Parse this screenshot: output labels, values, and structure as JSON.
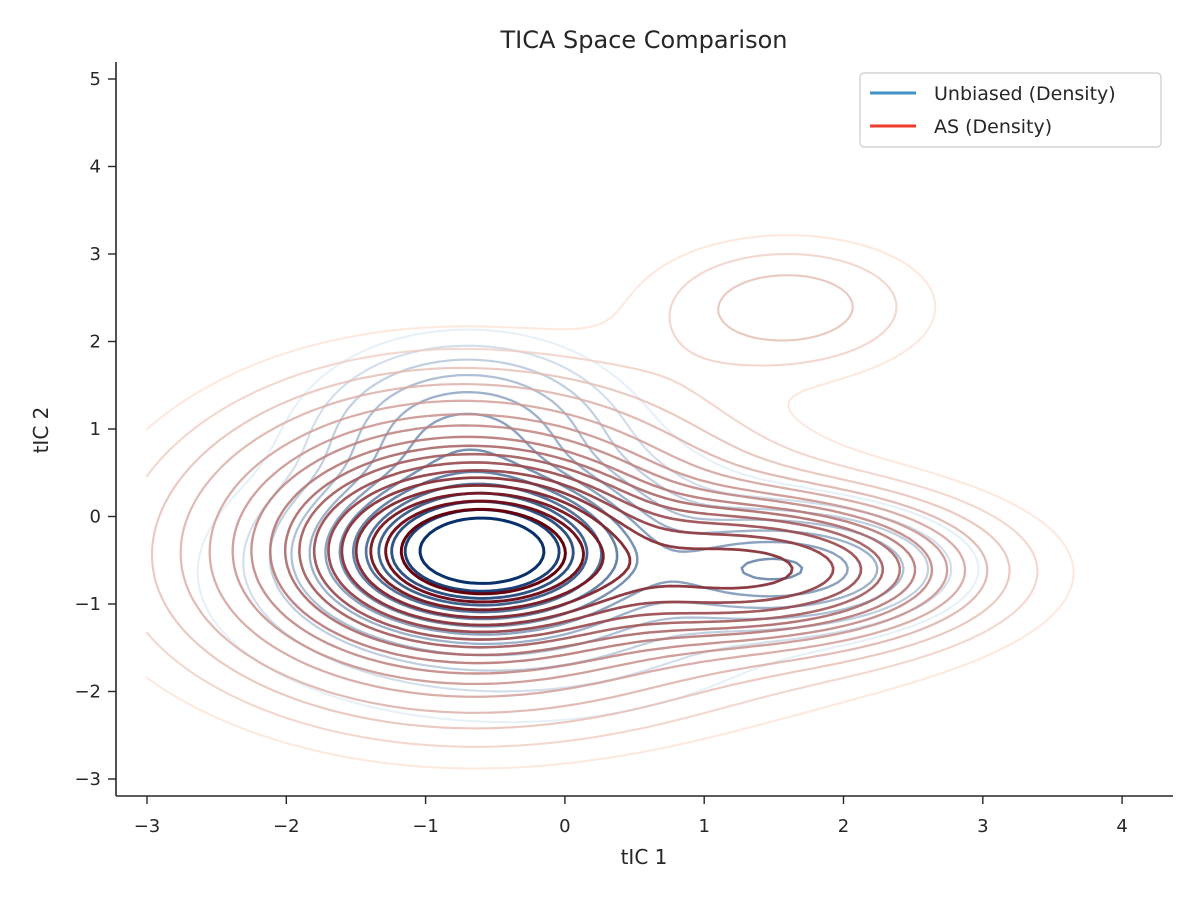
{
  "chart_data": {
    "type": "contour",
    "title": "TICA Space Comparison",
    "xlabel": "tIC 1",
    "ylabel": "tIC 2",
    "xlim": [
      -3.2,
      4.4
    ],
    "ylim": [
      -3.2,
      5.2
    ],
    "x_ticks": [
      -3,
      -2,
      -1,
      0,
      1,
      2,
      3,
      4
    ],
    "y_ticks": [
      -3,
      -2,
      -1,
      0,
      1,
      2,
      3,
      4,
      5
    ],
    "x_tick_labels": [
      "−3",
      "−2",
      "−1",
      "0",
      "1",
      "2",
      "3",
      "4"
    ],
    "y_tick_labels": [
      "−3",
      "−2",
      "−1",
      "0",
      "1",
      "2",
      "3",
      "4",
      "5"
    ],
    "grid": false,
    "legend_position": "top-right",
    "series": [
      {
        "name": "Unbiased (Density)",
        "legend_color": "#4292c6",
        "color_light": "#deebf7",
        "color_dark": "#08306b",
        "components": [
          {
            "cx": -0.6,
            "cy": -0.4,
            "sx": 0.55,
            "sy": 0.45,
            "weight": 1.0
          },
          {
            "cx": -0.7,
            "cy": 0.9,
            "sx": 0.55,
            "sy": 0.55,
            "weight": 0.18
          },
          {
            "cx": 1.55,
            "cy": -0.6,
            "sx": 0.6,
            "sy": 0.35,
            "weight": 0.22
          },
          {
            "cx": -0.4,
            "cy": -0.7,
            "sx": 1.2,
            "sy": 0.9,
            "weight": 0.08
          }
        ],
        "levels": [
          0.015,
          0.03,
          0.05,
          0.08,
          0.12,
          0.17,
          0.23,
          0.3,
          0.38,
          0.47,
          0.57,
          0.68,
          0.8
        ]
      },
      {
        "name": "AS (Density)",
        "legend_color": "#ef3b2c",
        "color_light": "#fee0d2",
        "color_dark": "#67000d",
        "components": [
          {
            "cx": -0.6,
            "cy": -0.4,
            "sx": 0.5,
            "sy": 0.42,
            "weight": 1.0
          },
          {
            "cx": -0.75,
            "cy": -0.3,
            "sx": 1.05,
            "sy": 1.0,
            "weight": 0.25
          },
          {
            "cx": 1.4,
            "cy": -0.6,
            "sx": 0.8,
            "sy": 0.45,
            "weight": 0.3
          },
          {
            "cx": 1.6,
            "cy": 2.4,
            "sx": 0.65,
            "sy": 0.5,
            "weight": 0.045
          },
          {
            "cx": 0.2,
            "cy": -0.8,
            "sx": 1.7,
            "sy": 0.9,
            "weight": 0.05
          }
        ],
        "levels": [
          0.012,
          0.022,
          0.035,
          0.05,
          0.07,
          0.09,
          0.11,
          0.135,
          0.16,
          0.19,
          0.23,
          0.28,
          0.34,
          0.42,
          0.52,
          0.64,
          0.78
        ]
      }
    ]
  }
}
